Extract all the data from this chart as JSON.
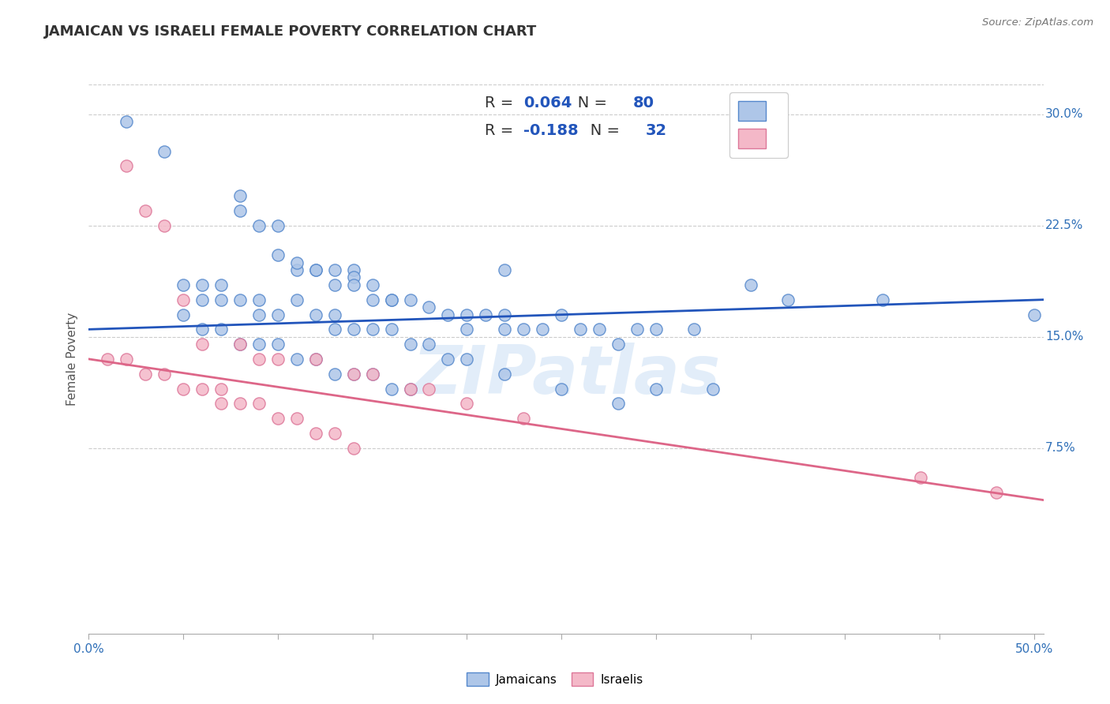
{
  "title": "JAMAICAN VS ISRAELI FEMALE POVERTY CORRELATION CHART",
  "source_text": "Source: ZipAtlas.com",
  "ylabel": "Female Poverty",
  "watermark": "ZIPatlas",
  "xlim": [
    0.0,
    0.505
  ],
  "ylim": [
    -0.05,
    0.32
  ],
  "xticks": [
    0.0,
    0.05,
    0.1,
    0.15,
    0.2,
    0.25,
    0.3,
    0.35,
    0.4,
    0.45,
    0.5
  ],
  "xtick_labels": [
    "0.0%",
    "",
    "",
    "",
    "",
    "",
    "",
    "",
    "",
    "",
    "50.0%"
  ],
  "ytick_vals": [
    0.075,
    0.15,
    0.225,
    0.3
  ],
  "ytick_labels": [
    "7.5%",
    "15.0%",
    "22.5%",
    "30.0%"
  ],
  "blue_R": "0.064",
  "blue_N": "80",
  "pink_R": "-0.188",
  "pink_N": "32",
  "blue_fill": "#aec6e8",
  "blue_edge": "#5588cc",
  "pink_fill": "#f4b8c8",
  "pink_edge": "#dd7799",
  "blue_line": "#2255bb",
  "pink_line": "#dd6688",
  "label_color": "#333333",
  "value_color": "#2255bb",
  "blue_scatter_x": [
    0.02,
    0.04,
    0.08,
    0.08,
    0.09,
    0.1,
    0.1,
    0.11,
    0.11,
    0.12,
    0.12,
    0.13,
    0.13,
    0.14,
    0.14,
    0.14,
    0.15,
    0.15,
    0.16,
    0.16,
    0.17,
    0.18,
    0.19,
    0.2,
    0.2,
    0.21,
    0.22,
    0.22,
    0.23,
    0.24,
    0.25,
    0.26,
    0.27,
    0.28,
    0.29,
    0.3,
    0.32,
    0.35,
    0.37,
    0.42,
    0.05,
    0.06,
    0.06,
    0.07,
    0.07,
    0.08,
    0.09,
    0.09,
    0.1,
    0.11,
    0.12,
    0.13,
    0.13,
    0.14,
    0.15,
    0.16,
    0.17,
    0.18,
    0.19,
    0.2,
    0.22,
    0.25,
    0.28,
    0.3,
    0.33,
    0.05,
    0.06,
    0.07,
    0.08,
    0.09,
    0.1,
    0.11,
    0.12,
    0.13,
    0.14,
    0.15,
    0.16,
    0.17,
    0.5,
    0.22
  ],
  "blue_scatter_y": [
    0.295,
    0.275,
    0.245,
    0.235,
    0.225,
    0.225,
    0.205,
    0.195,
    0.2,
    0.195,
    0.195,
    0.195,
    0.185,
    0.195,
    0.19,
    0.185,
    0.185,
    0.175,
    0.175,
    0.175,
    0.175,
    0.17,
    0.165,
    0.165,
    0.155,
    0.165,
    0.165,
    0.155,
    0.155,
    0.155,
    0.165,
    0.155,
    0.155,
    0.145,
    0.155,
    0.155,
    0.155,
    0.185,
    0.175,
    0.175,
    0.185,
    0.185,
    0.175,
    0.175,
    0.185,
    0.175,
    0.175,
    0.165,
    0.165,
    0.175,
    0.165,
    0.155,
    0.165,
    0.155,
    0.155,
    0.155,
    0.145,
    0.145,
    0.135,
    0.135,
    0.125,
    0.115,
    0.105,
    0.115,
    0.115,
    0.165,
    0.155,
    0.155,
    0.145,
    0.145,
    0.145,
    0.135,
    0.135,
    0.125,
    0.125,
    0.125,
    0.115,
    0.115,
    0.165,
    0.195
  ],
  "pink_scatter_x": [
    0.01,
    0.02,
    0.03,
    0.04,
    0.05,
    0.06,
    0.07,
    0.07,
    0.08,
    0.09,
    0.1,
    0.11,
    0.12,
    0.13,
    0.14,
    0.02,
    0.03,
    0.04,
    0.05,
    0.06,
    0.08,
    0.09,
    0.1,
    0.12,
    0.14,
    0.15,
    0.17,
    0.18,
    0.2,
    0.23,
    0.44,
    0.48
  ],
  "pink_scatter_y": [
    0.135,
    0.135,
    0.125,
    0.125,
    0.115,
    0.115,
    0.115,
    0.105,
    0.105,
    0.105,
    0.095,
    0.095,
    0.085,
    0.085,
    0.075,
    0.265,
    0.235,
    0.225,
    0.175,
    0.145,
    0.145,
    0.135,
    0.135,
    0.135,
    0.125,
    0.125,
    0.115,
    0.115,
    0.105,
    0.095,
    0.055,
    0.045
  ],
  "blue_trend_x0": 0.0,
  "blue_trend_x1": 0.505,
  "blue_trend_y0": 0.155,
  "blue_trend_y1": 0.175,
  "pink_trend_x0": 0.0,
  "pink_trend_x1": 0.505,
  "pink_trend_y0": 0.135,
  "pink_trend_y1": 0.04
}
